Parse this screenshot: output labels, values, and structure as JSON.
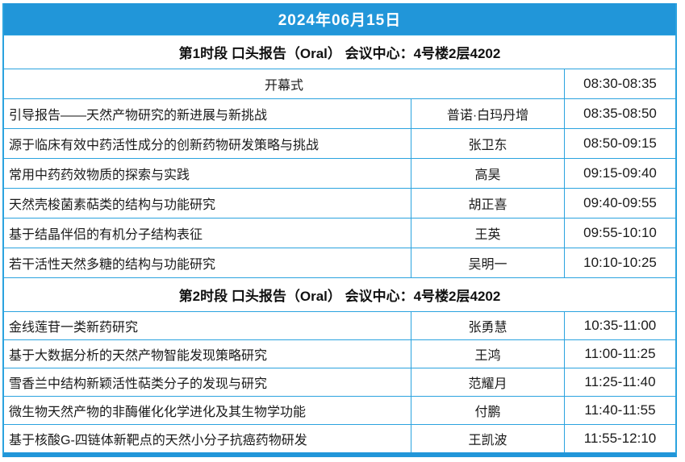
{
  "banner": {
    "date": "2024年06月15日"
  },
  "colors": {
    "accent": "#2196D9",
    "border": "#2BA3DF",
    "text": "#1A1A1A"
  },
  "sections": [
    {
      "header": "第1时段 口头报告（Oral） 会议中心：4号楼2层4202",
      "rows": [
        {
          "title": "开幕式",
          "speaker": "",
          "time": "08:30-08:35"
        },
        {
          "title": "引导报告——天然产物研究的新进展与新挑战",
          "speaker": "普诺·白玛丹增",
          "time": "08:35-08:50"
        },
        {
          "title": "源于临床有效中药活性成分的创新药物研发策略与挑战",
          "speaker": "张卫东",
          "time": "08:50-09:15"
        },
        {
          "title": "常用中药药效物质的探索与实践",
          "speaker": "高昊",
          "time": "09:15-09:40"
        },
        {
          "title": "天然壳梭菌素萜类的结构与功能研究",
          "speaker": "胡正喜",
          "time": "09:40-09:55"
        },
        {
          "title": "基于结晶伴侣的有机分子结构表征",
          "speaker": "王英",
          "time": "09:55-10:10"
        },
        {
          "title": "若干活性天然多糖的结构与功能研究",
          "speaker": "吴明一",
          "time": "10:10-10:25"
        }
      ]
    },
    {
      "header": "第2时段 口头报告（Oral） 会议中心：4号楼2层4202",
      "rows": [
        {
          "title": "金线莲苷一类新药研究",
          "speaker": "张勇慧",
          "time": "10:35-11:00"
        },
        {
          "title": "基于大数据分析的天然产物智能发现策略研究",
          "speaker": "王鸿",
          "time": "11:00-11:25"
        },
        {
          "title": "雪香兰中结构新颖活性萜类分子的发现与研究",
          "speaker": "范耀月",
          "time": "11:25-11:40"
        },
        {
          "title": "微生物天然产物的非酶催化化学进化及其生物学功能",
          "speaker": "付鹏",
          "time": "11:40-11:55"
        },
        {
          "title": "基于核酸G-四链体新靶点的天然小分子抗癌药物研发",
          "speaker": "王凯波",
          "time": "11:55-12:10"
        }
      ]
    }
  ]
}
